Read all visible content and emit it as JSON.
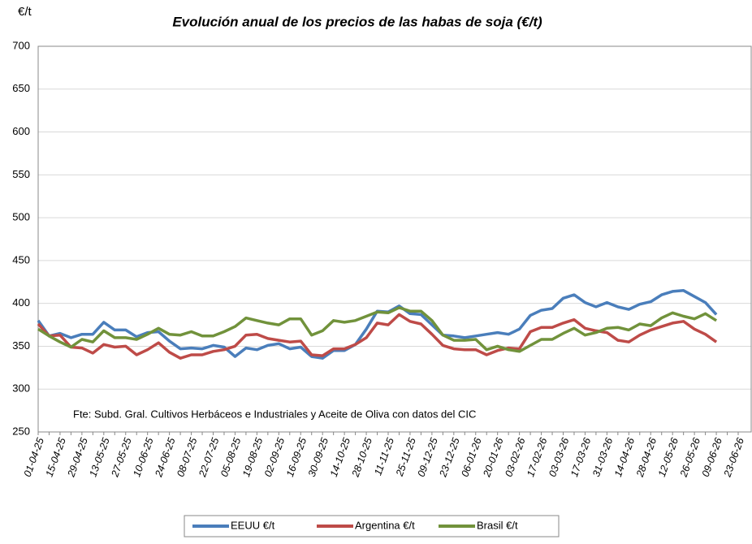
{
  "chart_data": {
    "type": "line",
    "title": "Evolución anual de los precios de las habas de soja (€/t)",
    "y_axis_label": "€/t",
    "annotation": "Fte: Subd. Gral. Cultivos Herbáceos e Industriales y Aceite de Oliva con datos del CIC",
    "categories": [
      "01-04-25",
      null,
      "15-04-25",
      null,
      "29-04-25",
      null,
      "13-05-25",
      null,
      "27-05-25",
      null,
      "10-06-25",
      null,
      "24-06-25",
      null,
      "08-07-25",
      null,
      "22-07-25",
      null,
      "05-08-25",
      null,
      "19-08-25",
      null,
      "02-09-25",
      null,
      "16-09-25",
      null,
      "30-09-25",
      null,
      "14-10-25",
      null,
      "28-10-25",
      null,
      "11-11-25",
      null,
      "25-11-25",
      null,
      "09-12-25",
      null,
      "23-12-25",
      null,
      "06-01-26",
      null,
      "20-01-26",
      null,
      "03-02-26",
      null,
      "17-02-26",
      null,
      "03-03-26",
      null,
      "17-03-26",
      null,
      "31-03-26",
      null,
      "14-04-26",
      null,
      "28-04-26",
      null,
      "12-05-26",
      null,
      "26-05-26",
      null,
      "09-06-26",
      null,
      "23-06-26"
    ],
    "series": [
      {
        "name": "EEUU €/t",
        "color": "#4a7ebb",
        "values": [
          380,
          362,
          365,
          360,
          364,
          364,
          378,
          369,
          369,
          361,
          366,
          367,
          356,
          347,
          348,
          347,
          351,
          349,
          338,
          348,
          346,
          351,
          353,
          347,
          349,
          338,
          336,
          345,
          345,
          352,
          370,
          391,
          390,
          397,
          388,
          387,
          375,
          363,
          362,
          360,
          362,
          364,
          366,
          364,
          370,
          386,
          392,
          394,
          406,
          410,
          401,
          396,
          401,
          396,
          393,
          399,
          402,
          410,
          414,
          415,
          408,
          401,
          387,
          null,
          null
        ]
      },
      {
        "name": "Argentina €/t",
        "color": "#be4b48",
        "values": [
          376,
          362,
          363,
          349,
          348,
          342,
          352,
          349,
          350,
          340,
          346,
          354,
          343,
          336,
          340,
          340,
          344,
          346,
          350,
          363,
          364,
          359,
          357,
          355,
          356,
          340,
          339,
          347,
          347,
          352,
          360,
          377,
          375,
          387,
          379,
          376,
          364,
          351,
          347,
          346,
          346,
          340,
          345,
          348,
          347,
          367,
          372,
          372,
          377,
          381,
          371,
          368,
          366,
          357,
          355,
          363,
          369,
          373,
          377,
          379,
          370,
          364,
          355,
          null,
          null
        ]
      },
      {
        "name": "Brasil €/t",
        "color": "#71923b",
        "values": [
          370,
          362,
          355,
          349,
          358,
          355,
          368,
          360,
          360,
          358,
          364,
          371,
          364,
          363,
          367,
          362,
          362,
          367,
          373,
          383,
          380,
          377,
          375,
          382,
          382,
          363,
          368,
          380,
          378,
          380,
          385,
          390,
          389,
          395,
          391,
          391,
          380,
          363,
          357,
          357,
          358,
          346,
          350,
          346,
          344,
          351,
          358,
          358,
          365,
          371,
          363,
          366,
          371,
          372,
          369,
          376,
          374,
          383,
          389,
          385,
          382,
          388,
          380,
          null,
          null
        ]
      }
    ],
    "ylim": [
      250,
      700
    ],
    "yticks": [
      250,
      300,
      350,
      400,
      450,
      500,
      550,
      600,
      650,
      700
    ],
    "grid": true,
    "legend": "bottom"
  }
}
